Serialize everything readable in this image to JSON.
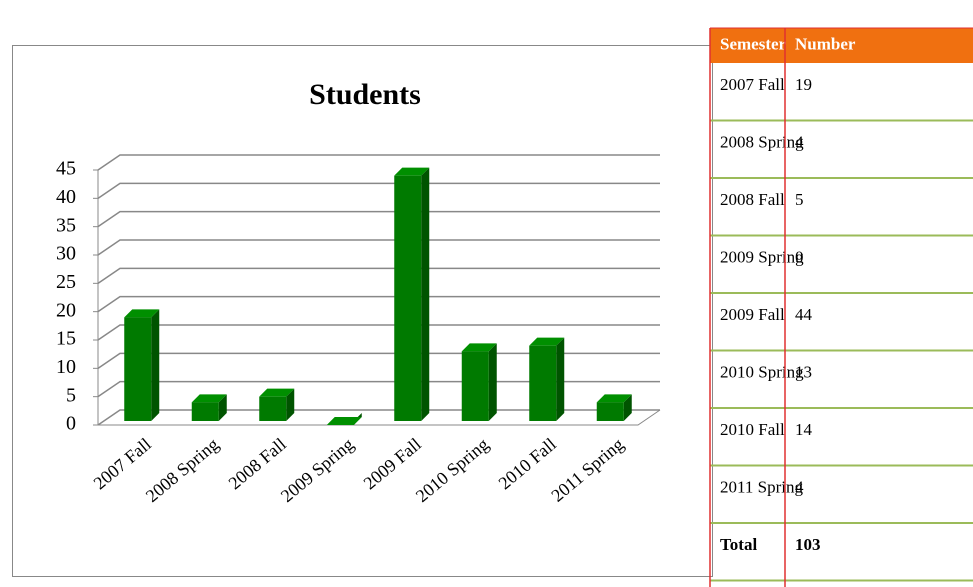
{
  "chart_data": {
    "type": "bar",
    "title": "Students",
    "categories": [
      "2007 Fall",
      "2008 Spring",
      "2008 Fall",
      "2009 Spring",
      "2009 Fall",
      "2010 Spring",
      "2010 Fall",
      "2011 Spring"
    ],
    "values": [
      19,
      4,
      5,
      0,
      44,
      13,
      14,
      4
    ],
    "color": "#007a00",
    "ylim": [
      0,
      45
    ],
    "yticks": [
      0,
      5,
      10,
      15,
      20,
      25,
      30,
      35,
      40,
      45
    ],
    "grid": true
  },
  "table": {
    "header": [
      "Semester",
      "Number"
    ],
    "rows": [
      [
        "2007 Fall",
        19
      ],
      [
        "2008 Spring",
        4
      ],
      [
        "2008 Fall",
        5
      ],
      [
        "2009 Spring",
        0
      ],
      [
        "2009 Fall",
        44
      ],
      [
        "2010 Spring",
        13
      ],
      [
        "2010 Fall",
        14
      ],
      [
        "2011 Spring",
        4
      ],
      [
        "Total",
        103
      ]
    ]
  }
}
